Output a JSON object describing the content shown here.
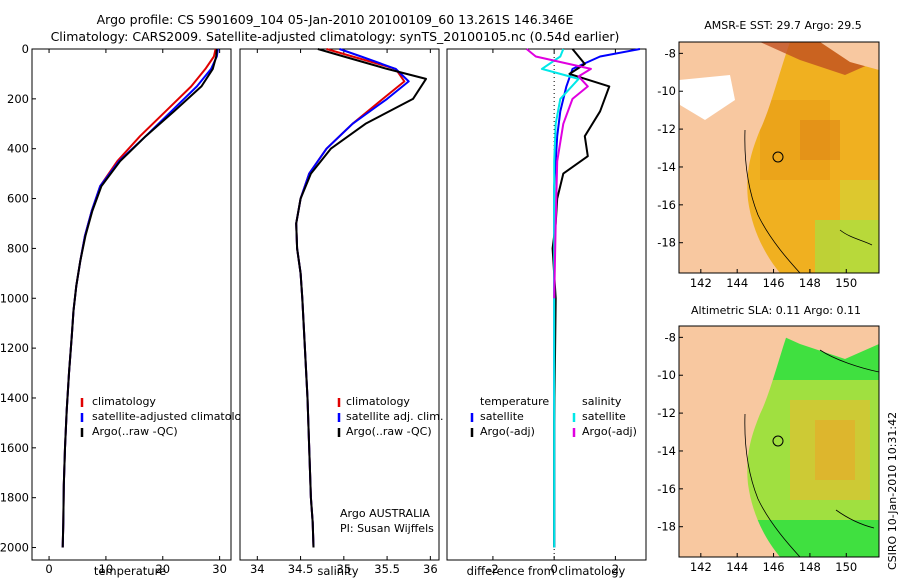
{
  "header": {
    "line1": "Argo profile: CS 5901609_104 05-Jan-2010 20100109_60 13.261S 146.346E",
    "line2": "Climatology: CARS2009. Satellite-adjusted climatology: synTS_20100105.nc (0.54d earlier)"
  },
  "colors": {
    "climatology": "#e00000",
    "satellite": "#0000ff",
    "argo": "#000000",
    "salinity_satellite": "#00e8e8",
    "salinity_argo": "#e000e0",
    "land": "#f8c8a0"
  },
  "chart_data": [
    {
      "id": "temperature",
      "type": "line",
      "xlabel": "temperature",
      "ylabel": "",
      "xlim": [
        -3,
        32
      ],
      "ylim": [
        2050,
        0
      ],
      "xticks": [
        0,
        10,
        20,
        30
      ],
      "yticks": [
        0,
        200,
        400,
        600,
        800,
        1000,
        1200,
        1400,
        1600,
        1800,
        2000
      ],
      "legend": [
        "climatology",
        "satellite-adjusted climatology",
        "Argo(..raw -QC)"
      ],
      "series": [
        {
          "name": "climatology",
          "color": "#e00000",
          "x": [
            29.3,
            29.0,
            27.5,
            25.0,
            20.5,
            16.0,
            12.0,
            9.0,
            7.5,
            6.3,
            5.5,
            4.8,
            4.3,
            4.0,
            3.5,
            3.1,
            2.8,
            2.6,
            2.5,
            2.4
          ],
          "y": [
            0,
            30,
            80,
            150,
            250,
            350,
            450,
            550,
            650,
            750,
            850,
            950,
            1050,
            1150,
            1300,
            1450,
            1600,
            1750,
            1900,
            2000
          ]
        },
        {
          "name": "satellite-adjusted climatology",
          "color": "#0000ff",
          "x": [
            29.7,
            29.5,
            28.5,
            26.0,
            21.5,
            17.0,
            12.3,
            9.0,
            7.5,
            6.3,
            5.5,
            4.8,
            4.3,
            4.0,
            3.5,
            3.1,
            2.8,
            2.6,
            2.5,
            2.4
          ],
          "y": [
            0,
            30,
            80,
            150,
            250,
            350,
            450,
            550,
            650,
            750,
            850,
            950,
            1050,
            1150,
            1300,
            1450,
            1600,
            1750,
            1900,
            2000
          ]
        },
        {
          "name": "Argo(..raw -QC)",
          "color": "#000000",
          "x": [
            29.5,
            29.4,
            28.8,
            26.8,
            22.0,
            17.0,
            12.5,
            9.2,
            7.6,
            6.4,
            5.5,
            4.8,
            4.3,
            4.0,
            3.5,
            3.1,
            2.8,
            2.6,
            2.5,
            2.4
          ],
          "y": [
            0,
            30,
            80,
            150,
            250,
            350,
            450,
            550,
            650,
            750,
            850,
            950,
            1050,
            1150,
            1300,
            1450,
            1600,
            1750,
            1900,
            2000
          ]
        }
      ]
    },
    {
      "id": "salinity",
      "type": "line",
      "xlabel": "salinity",
      "ylabel": "",
      "xlim": [
        33.8,
        36.1
      ],
      "ylim": [
        2050,
        0
      ],
      "xticks": [
        34,
        34.5,
        35,
        35.5,
        36
      ],
      "legend": [
        "climatology",
        "satellite adj. clim.",
        "Argo(..raw -QC)"
      ],
      "series": [
        {
          "name": "climatology",
          "color": "#e00000",
          "x": [
            34.8,
            35.1,
            35.6,
            35.7,
            35.45,
            35.1,
            34.8,
            34.6,
            34.5,
            34.45,
            34.46,
            34.5,
            34.52,
            34.55,
            34.58,
            34.6,
            34.62,
            34.64,
            34.65
          ],
          "y": [
            0,
            30,
            80,
            130,
            200,
            300,
            400,
            500,
            600,
            700,
            800,
            900,
            1000,
            1200,
            1400,
            1600,
            1800,
            1900,
            2000
          ]
        },
        {
          "name": "satellite adj. clim.",
          "color": "#0000ff",
          "x": [
            34.95,
            35.2,
            35.6,
            35.75,
            35.5,
            35.1,
            34.8,
            34.6,
            34.5,
            34.45,
            34.46,
            34.5,
            34.52,
            34.55,
            34.58,
            34.6,
            34.62,
            34.64,
            34.65
          ],
          "y": [
            0,
            30,
            80,
            130,
            200,
            300,
            400,
            500,
            600,
            700,
            800,
            900,
            1000,
            1200,
            1400,
            1600,
            1800,
            1900,
            2000
          ]
        },
        {
          "name": "Argo(..raw -QC)",
          "color": "#000000",
          "x": [
            34.7,
            35.0,
            35.5,
            35.95,
            35.8,
            35.25,
            34.85,
            34.62,
            34.5,
            34.45,
            34.46,
            34.5,
            34.52,
            34.55,
            34.58,
            34.6,
            34.62,
            34.64,
            34.65
          ],
          "y": [
            0,
            30,
            80,
            120,
            200,
            300,
            400,
            500,
            600,
            700,
            800,
            900,
            1000,
            1200,
            1400,
            1600,
            1800,
            1900,
            2000
          ]
        }
      ],
      "annotation": [
        "Argo AUSTRALIA",
        "PI: Susan Wijffels"
      ]
    },
    {
      "id": "difference",
      "type": "line",
      "xlabel": "difference from climatology",
      "ylabel": "",
      "xlim": [
        -3.5,
        3
      ],
      "ylim": [
        2050,
        0
      ],
      "xticks": [
        -2,
        0,
        2
      ],
      "legend": [
        "temperature",
        "satellite",
        "Argo(-adj)",
        "salinity",
        "satellite",
        "Argo(-adj)"
      ],
      "series": [
        {
          "name": "satellite",
          "color": "#0000ff",
          "x": [
            2.8,
            1.5,
            0.6,
            0.4,
            0.2,
            0.1,
            0.05,
            0.0,
            0.0,
            0.0,
            0.0,
            0.0
          ],
          "y": [
            0,
            30,
            80,
            150,
            250,
            350,
            450,
            550,
            650,
            800,
            1200,
            2000
          ]
        },
        {
          "name": "Argo(-adj)",
          "color": "#000000",
          "x": [
            0.6,
            1.0,
            0.5,
            1.8,
            1.5,
            1.0,
            1.1,
            0.3,
            0.1,
            0.05,
            -0.05,
            0.05,
            0.0,
            0.0
          ],
          "y": [
            0,
            60,
            100,
            150,
            250,
            350,
            430,
            500,
            600,
            700,
            800,
            1000,
            1500,
            2000
          ]
        },
        {
          "name": "satellite",
          "color": "#00e8e8",
          "x": [
            0.3,
            0.2,
            -0.4,
            0.8,
            0.2,
            0.05,
            0.0,
            0.0,
            0.0,
            0.0
          ],
          "y": [
            0,
            30,
            80,
            120,
            200,
            300,
            450,
            700,
            1200,
            2000
          ]
        },
        {
          "name": "Argo(-adj)",
          "color": "#e000e0",
          "x": [
            -0.9,
            -0.6,
            1.2,
            0.8,
            1.1,
            0.6,
            0.3,
            0.1,
            0.05,
            0.0
          ],
          "y": [
            0,
            30,
            80,
            110,
            150,
            200,
            300,
            450,
            700,
            1000
          ]
        }
      ]
    }
  ],
  "maps": [
    {
      "title": "AMSR-E SST: 29.7 Argo: 29.5",
      "xticks": [
        "142",
        "144",
        "146",
        "148",
        "150"
      ],
      "yticks": [
        "-8",
        "-10",
        "-12",
        "-14",
        "-16",
        "-18"
      ]
    },
    {
      "title": "Altimetric SLA: 0.11 Argo: 0.11",
      "xticks": [
        "142",
        "144",
        "146",
        "148",
        "150"
      ],
      "yticks": [
        "-8",
        "-10",
        "-12",
        "-14",
        "-16",
        "-18"
      ]
    }
  ],
  "stamp": "CSIRO 10-Jan-2010 10:31:42"
}
